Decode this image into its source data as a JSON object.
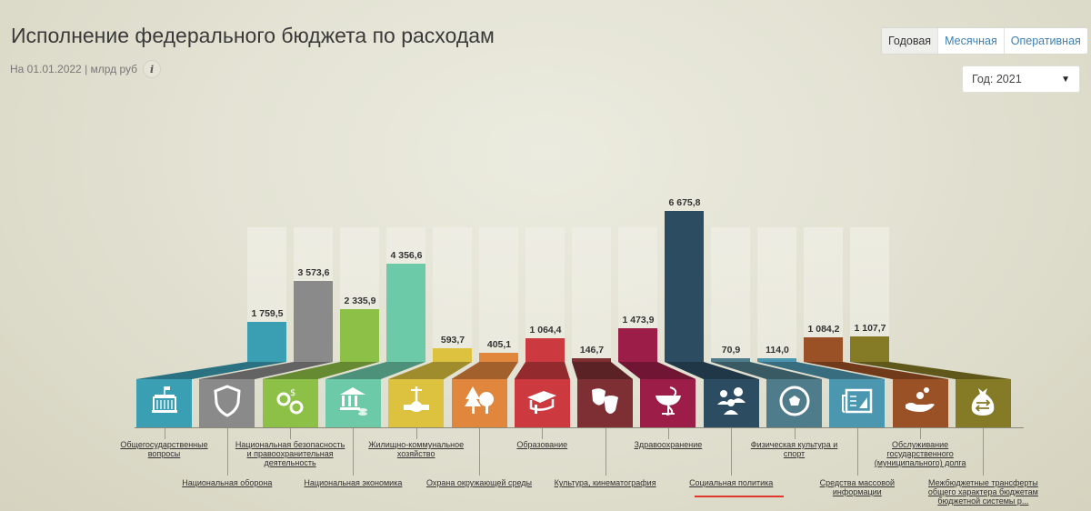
{
  "header": {
    "title": "Исполнение федерального бюджета по расходам",
    "subtitle": "На 01.01.2022 | млрд руб",
    "info_label": "i"
  },
  "tabs": [
    {
      "label": "Годовая",
      "active": true
    },
    {
      "label": "Месячная",
      "active": false
    },
    {
      "label": "Оперативная",
      "active": false
    }
  ],
  "year_select": {
    "label": "Год: 2021",
    "arrow": "▼"
  },
  "chart_data": {
    "type": "bar",
    "title": "Исполнение федерального бюджета по расходам",
    "subtitle": "На 01.01.2022 | млрд руб",
    "ylabel": "млрд руб",
    "ylim": [
      0,
      7000
    ],
    "grid": false,
    "legend": "icons with underlined labels below bars",
    "categories": [
      "Общегосударственные вопросы",
      "Национальная оборона",
      "Национальная безопасность и правоохранительная деятельность",
      "Национальная экономика",
      "Жилищно-коммунальное хозяйство",
      "Охрана окружающей среды",
      "Образование",
      "Культура, кинематография",
      "Здравоохранение",
      "Социальная политика",
      "Физическая культура и спорт",
      "Средства массовой информации",
      "Обслуживание государственного (муниципального) долга",
      "Межбюджетные трансферты общего характера бюджетам бюджетной системы р..."
    ],
    "values": [
      1759.5,
      3573.6,
      2335.9,
      4356.6,
      593.7,
      405.1,
      1064.4,
      146.7,
      1473.9,
      6675.8,
      70.9,
      114.0,
      1084.2,
      1107.7
    ],
    "value_labels": [
      "1 759,5",
      "3 573,6",
      "2 335,9",
      "4 356,6",
      "593,7",
      "405,1",
      "1 064,4",
      "146,7",
      "1 473,9",
      "6 675,8",
      "70,9",
      "114,0",
      "1 084,2",
      "1 107,7"
    ],
    "colors": [
      "#3a9fb3",
      "#8a8a8a",
      "#8dc046",
      "#6ccaa9",
      "#dcc23f",
      "#e0863d",
      "#cc3a3f",
      "#7e2f34",
      "#9c1d47",
      "#2c4c62",
      "#4f7c8a",
      "#4c97b0",
      "#9b5126",
      "#857a26"
    ],
    "highlighted": "Социальная политика"
  },
  "items": [
    {
      "label": "Общегосударственные вопросы",
      "lines": [
        "Общегосударственные",
        "вопросы"
      ],
      "icon": "government-building-icon",
      "row": 1
    },
    {
      "label": "Национальная оборона",
      "lines": [
        "Национальная оборона"
      ],
      "icon": "shield-icon",
      "row": 2
    },
    {
      "label": "Национальная безопасность и правоохранительная деятельность",
      "lines": [
        "Национальная безопасность",
        "и правоохранительная",
        "деятельность"
      ],
      "icon": "handcuffs-icon",
      "row": 1
    },
    {
      "label": "Национальная экономика",
      "lines": [
        "Национальная экономика"
      ],
      "icon": "bank-coins-icon",
      "row": 2
    },
    {
      "label": "Жилищно-коммунальное хозяйство",
      "lines": [
        "Жилищно-коммунальное",
        "хозяйство"
      ],
      "icon": "pipe-valve-icon",
      "row": 1
    },
    {
      "label": "Охрана окружающей среды",
      "lines": [
        "Охрана окружающей среды"
      ],
      "icon": "trees-icon",
      "row": 2
    },
    {
      "label": "Образование",
      "lines": [
        "Образование"
      ],
      "icon": "graduation-cap-icon",
      "row": 1
    },
    {
      "label": "Культура, кинематография",
      "lines": [
        "Культура, кинематография"
      ],
      "icon": "theater-masks-icon",
      "row": 2
    },
    {
      "label": "Здравоохранение",
      "lines": [
        "Здравоохранение"
      ],
      "icon": "medical-bowl-icon",
      "row": 1
    },
    {
      "label": "Социальная политика",
      "lines": [
        "Социальная политика"
      ],
      "icon": "people-group-icon",
      "row": 2
    },
    {
      "label": "Физическая культура и спорт",
      "lines": [
        "Физическая культура и",
        "спорт"
      ],
      "icon": "soccer-ball-icon",
      "row": 1
    },
    {
      "label": "Средства массовой информации",
      "lines": [
        "Средства массовой",
        "информации"
      ],
      "icon": "newspaper-icon",
      "row": 2
    },
    {
      "label": "Обслуживание государственного (муниципального) долга",
      "lines": [
        "Обслуживание",
        "государственного",
        "(муниципального) долга"
      ],
      "icon": "hand-coins-icon",
      "row": 1
    },
    {
      "label": "Межбюджетные трансферты общего характера бюджетам бюджетной системы р...",
      "lines": [
        "Межбюджетные трансферты",
        "общего характера бюджетам",
        "бюджетной системы р..."
      ],
      "icon": "money-bag-transfer-icon",
      "row": 2
    }
  ]
}
